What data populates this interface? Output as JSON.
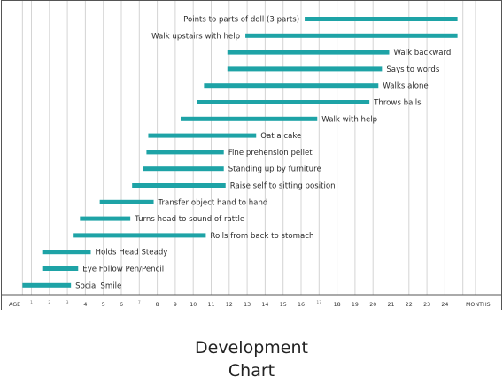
{
  "caption_lines": [
    "Development",
    "Chart"
  ],
  "chart_data": {
    "type": "gantt",
    "xlabel": "AGE",
    "xunit_label": "MONTHS",
    "bar_color": "#1ea3a6",
    "grid": true,
    "ticks": [
      {
        "value": 1,
        "label": "1",
        "small": true
      },
      {
        "value": 2,
        "label": "2",
        "small": true
      },
      {
        "value": 3,
        "label": "3",
        "small": true
      },
      {
        "value": 4,
        "label": "4"
      },
      {
        "value": 5,
        "label": "5"
      },
      {
        "value": 6,
        "label": "6"
      },
      {
        "value": 7,
        "label": "7",
        "small": true
      },
      {
        "value": 8,
        "label": "8"
      },
      {
        "value": 9,
        "label": "9"
      },
      {
        "value": 10,
        "label": "10"
      },
      {
        "value": 11,
        "label": "11"
      },
      {
        "value": 12,
        "label": "12"
      },
      {
        "value": 13,
        "label": "13"
      },
      {
        "value": 14,
        "label": "14"
      },
      {
        "value": 15,
        "label": "15"
      },
      {
        "value": 16,
        "label": "16"
      },
      {
        "value": 17,
        "label": "17",
        "small": true
      },
      {
        "value": 18,
        "label": "18"
      },
      {
        "value": 19,
        "label": "19"
      },
      {
        "value": 20,
        "label": "20"
      },
      {
        "value": 21,
        "label": "21"
      },
      {
        "value": 22,
        "label": "22"
      },
      {
        "value": 23,
        "label": "23"
      },
      {
        "value": 24,
        "label": "24"
      }
    ],
    "tasks": [
      {
        "label": "Points to parts of doll (3 parts)",
        "start": 16.2,
        "end": 24.7,
        "label_side": "left"
      },
      {
        "label": "Walk upstairs with help",
        "start": 12.9,
        "end": 24.7,
        "label_side": "left"
      },
      {
        "label": "Walk backward",
        "start": 11.9,
        "end": 20.9,
        "label_side": "right"
      },
      {
        "label": "Says to words",
        "start": 11.9,
        "end": 20.5,
        "label_side": "right"
      },
      {
        "label": "Walks alone",
        "start": 10.6,
        "end": 20.3,
        "label_side": "right"
      },
      {
        "label": "Throws  balls",
        "start": 10.2,
        "end": 19.8,
        "label_side": "right"
      },
      {
        "label": "Walk with help",
        "start": 9.3,
        "end": 16.9,
        "label_side": "right"
      },
      {
        "label": "Oat a cake",
        "start": 7.5,
        "end": 13.5,
        "label_side": "right"
      },
      {
        "label": "Fine prehension pellet",
        "start": 7.4,
        "end": 11.7,
        "label_side": "right"
      },
      {
        "label": "Standing up by furniture",
        "start": 7.2,
        "end": 11.7,
        "label_side": "right"
      },
      {
        "label": "Raise self to sitting position",
        "start": 6.6,
        "end": 11.8,
        "label_side": "right"
      },
      {
        "label": "Transfer object hand to hand",
        "start": 4.8,
        "end": 7.8,
        "label_side": "right"
      },
      {
        "label": "Turns head to sound of rattle",
        "start": 3.7,
        "end": 6.5,
        "label_side": "right"
      },
      {
        "label": "Rolls from back to stomach",
        "start": 3.3,
        "end": 10.7,
        "label_side": "right"
      },
      {
        "label": "Holds Head Steady",
        "start": 1.6,
        "end": 4.3,
        "label_side": "right"
      },
      {
        "label": "Eye Follow Pen/Pencil",
        "start": 1.6,
        "end": 3.6,
        "label_side": "right"
      },
      {
        "label": "Social Smile",
        "start": 0.5,
        "end": 3.2,
        "label_side": "right"
      }
    ]
  }
}
